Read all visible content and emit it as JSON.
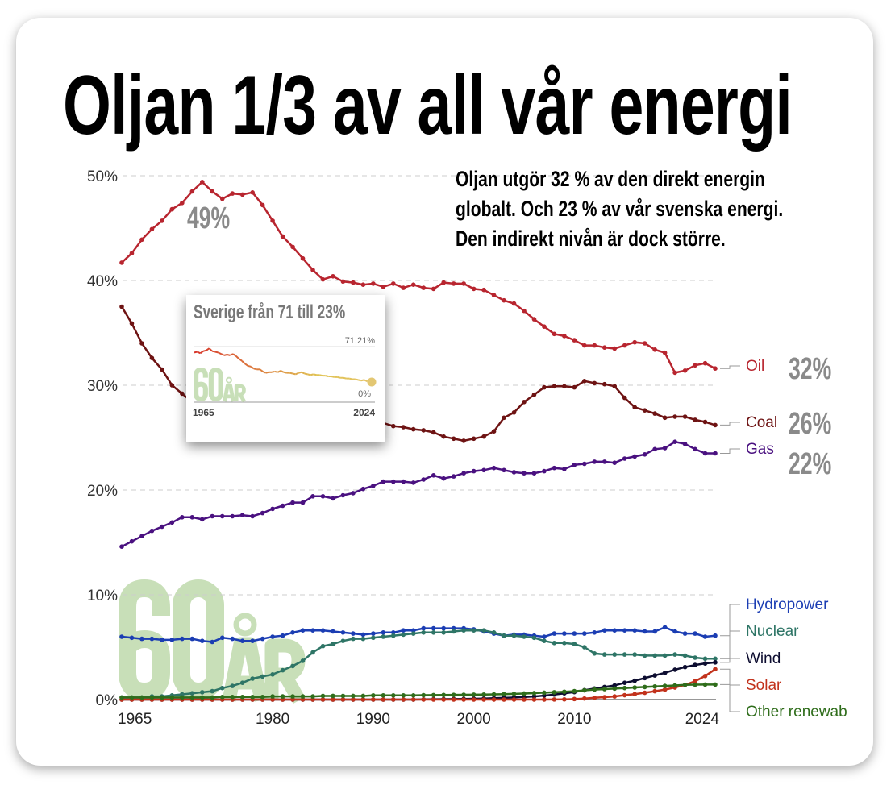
{
  "title": "Oljan 1/3 av all vår energi",
  "subtitle_lines": [
    "Oljan utgör 32 % av den direkt energin",
    "globalt. Och 23 % av vår svenska energi.",
    "Den indirekt nivån är dock större."
  ],
  "watermark": {
    "number": "60",
    "unit": "ÅR",
    "color": "#c8dfb8"
  },
  "callouts": {
    "peak": "49%",
    "oil": "32%",
    "coal": "26%",
    "gas": "22%"
  },
  "inset": {
    "title": "Sverige från 71 till 23%",
    "ymax_label": "71.21%",
    "ymin_label": "0%",
    "x_start": "1965",
    "x_end": "2024",
    "watermark_number": "60",
    "watermark_unit": "ÅR",
    "values": [
      65,
      66,
      64,
      67,
      68,
      71,
      67,
      66,
      65,
      63,
      61,
      62,
      61,
      63,
      60,
      56,
      53,
      49,
      46,
      45,
      42,
      41,
      41,
      38,
      36,
      37,
      37,
      38,
      37,
      39,
      37,
      36,
      36,
      35,
      34,
      36,
      37,
      35,
      34,
      33,
      34,
      33,
      33,
      32,
      32,
      31,
      31,
      30,
      30,
      29,
      29,
      28,
      28,
      27,
      27,
      26,
      25,
      26,
      24,
      23
    ]
  },
  "chart_data": {
    "type": "line",
    "x_start": 1965,
    "x_end": 2024,
    "xlim": [
      1965,
      2024
    ],
    "ylim": [
      0,
      50
    ],
    "x_ticks": [
      "1965",
      "1980",
      "1990",
      "2000",
      "2010",
      "2024"
    ],
    "y_ticks": [
      "0%",
      "10%",
      "20%",
      "30%",
      "40%",
      "50%"
    ],
    "grid": true,
    "series": [
      {
        "name": "Oil",
        "color": "#b8252f",
        "values": [
          41.7,
          42.6,
          43.9,
          44.9,
          45.7,
          46.8,
          47.4,
          48.5,
          49.4,
          48.5,
          47.8,
          48.3,
          48.2,
          48.4,
          47.2,
          45.7,
          44.2,
          43.2,
          42.1,
          41.0,
          40.1,
          40.4,
          39.9,
          39.8,
          39.6,
          39.7,
          39.4,
          39.7,
          39.3,
          39.6,
          39.3,
          39.2,
          39.8,
          39.7,
          39.7,
          39.2,
          39.1,
          38.6,
          38.1,
          37.8,
          37.1,
          36.3,
          35.6,
          34.9,
          34.7,
          34.3,
          33.8,
          33.8,
          33.6,
          33.5,
          33.8,
          34.1,
          34.0,
          33.4,
          33.1,
          31.2,
          31.4,
          31.9,
          32.1,
          31.6
        ]
      },
      {
        "name": "Coal",
        "color": "#6e1313",
        "values": [
          37.5,
          35.9,
          34.0,
          32.6,
          31.5,
          30.0,
          29.2,
          28.4,
          27.7,
          28.0,
          28.2,
          28.0,
          27.8,
          27.5,
          27.6,
          27.8,
          27.6,
          27.5,
          27.2,
          27.0,
          27.1,
          26.9,
          26.8,
          26.6,
          26.5,
          26.5,
          26.4,
          26.1,
          26.0,
          25.8,
          25.7,
          25.5,
          25.1,
          24.9,
          24.7,
          24.9,
          25.1,
          25.6,
          26.9,
          27.4,
          28.4,
          29.1,
          29.8,
          29.9,
          29.9,
          29.8,
          30.4,
          30.2,
          30.1,
          29.9,
          28.8,
          27.9,
          27.6,
          27.3,
          26.9,
          27.0,
          27.0,
          26.7,
          26.5,
          26.2
        ]
      },
      {
        "name": "Gas",
        "color": "#4a1180",
        "values": [
          14.6,
          15.1,
          15.6,
          16.1,
          16.5,
          16.9,
          17.4,
          17.4,
          17.2,
          17.5,
          17.5,
          17.5,
          17.6,
          17.5,
          17.8,
          18.2,
          18.5,
          18.8,
          18.8,
          19.4,
          19.4,
          19.2,
          19.5,
          19.7,
          20.1,
          20.4,
          20.8,
          20.8,
          20.8,
          20.7,
          21.0,
          21.4,
          21.1,
          21.3,
          21.6,
          21.8,
          21.9,
          22.1,
          21.9,
          21.7,
          21.6,
          21.6,
          21.8,
          22.1,
          22.0,
          22.4,
          22.5,
          22.7,
          22.7,
          22.6,
          23.0,
          23.2,
          23.4,
          23.9,
          24.0,
          24.6,
          24.4,
          23.9,
          23.5,
          23.5
        ]
      },
      {
        "name": "Hydropower",
        "color": "#1b3db3",
        "values": [
          6.0,
          5.9,
          5.8,
          5.8,
          5.7,
          5.7,
          5.8,
          5.8,
          5.6,
          5.5,
          5.9,
          5.8,
          5.6,
          5.6,
          5.8,
          6.0,
          6.1,
          6.4,
          6.6,
          6.6,
          6.6,
          6.5,
          6.4,
          6.3,
          6.2,
          6.3,
          6.4,
          6.4,
          6.6,
          6.6,
          6.8,
          6.8,
          6.8,
          6.8,
          6.8,
          6.7,
          6.5,
          6.3,
          6.1,
          6.2,
          6.2,
          6.1,
          6.0,
          6.3,
          6.3,
          6.3,
          6.3,
          6.4,
          6.6,
          6.6,
          6.6,
          6.6,
          6.5,
          6.5,
          6.9,
          6.5,
          6.3,
          6.3,
          6.0,
          6.1
        ]
      },
      {
        "name": "Nuclear",
        "color": "#2e7566",
        "values": [
          0.2,
          0.2,
          0.2,
          0.3,
          0.3,
          0.4,
          0.5,
          0.6,
          0.7,
          0.8,
          1.1,
          1.3,
          1.6,
          2.0,
          2.2,
          2.4,
          2.8,
          3.2,
          3.7,
          4.5,
          5.1,
          5.3,
          5.6,
          5.8,
          5.8,
          5.9,
          6.0,
          6.1,
          6.2,
          6.3,
          6.4,
          6.4,
          6.4,
          6.5,
          6.6,
          6.6,
          6.6,
          6.4,
          6.1,
          6.1,
          6.0,
          5.9,
          5.6,
          5.4,
          5.4,
          5.3,
          5.0,
          4.4,
          4.3,
          4.3,
          4.3,
          4.3,
          4.2,
          4.2,
          4.2,
          4.3,
          4.2,
          4.0,
          3.9,
          3.9
        ]
      },
      {
        "name": "Wind",
        "color": "#0d0d30",
        "values": [
          0,
          0,
          0,
          0,
          0,
          0,
          0,
          0,
          0,
          0,
          0,
          0,
          0,
          0,
          0,
          0,
          0,
          0,
          0,
          0,
          0,
          0,
          0,
          0,
          0,
          0,
          0,
          0,
          0,
          0,
          0.02,
          0.03,
          0.04,
          0.05,
          0.06,
          0.08,
          0.1,
          0.13,
          0.16,
          0.2,
          0.25,
          0.3,
          0.38,
          0.48,
          0.6,
          0.72,
          0.9,
          1.05,
          1.2,
          1.35,
          1.6,
          1.8,
          2.05,
          2.3,
          2.55,
          2.85,
          3.1,
          3.3,
          3.45,
          3.55
        ]
      },
      {
        "name": "Solar",
        "color": "#c2321c",
        "values": [
          0,
          0,
          0,
          0,
          0,
          0,
          0,
          0,
          0,
          0,
          0,
          0,
          0,
          0,
          0,
          0,
          0,
          0,
          0,
          0,
          0,
          0,
          0,
          0,
          0,
          0,
          0,
          0,
          0,
          0,
          0,
          0,
          0,
          0,
          0,
          0,
          0,
          0,
          0,
          0,
          0,
          0,
          0,
          0.01,
          0.02,
          0.05,
          0.1,
          0.17,
          0.23,
          0.3,
          0.42,
          0.52,
          0.65,
          0.8,
          0.95,
          1.15,
          1.4,
          1.75,
          2.25,
          2.9
        ]
      },
      {
        "name": "Other renewables",
        "label": "Other renewab",
        "color": "#2f6d1b",
        "values": [
          0.2,
          0.2,
          0.2,
          0.2,
          0.2,
          0.2,
          0.2,
          0.2,
          0.2,
          0.2,
          0.25,
          0.25,
          0.25,
          0.25,
          0.25,
          0.3,
          0.3,
          0.3,
          0.3,
          0.3,
          0.35,
          0.35,
          0.35,
          0.35,
          0.35,
          0.4,
          0.4,
          0.4,
          0.4,
          0.4,
          0.42,
          0.43,
          0.44,
          0.45,
          0.46,
          0.47,
          0.48,
          0.5,
          0.52,
          0.55,
          0.58,
          0.62,
          0.66,
          0.7,
          0.75,
          0.8,
          0.88,
          0.95,
          1.0,
          1.05,
          1.1,
          1.15,
          1.2,
          1.25,
          1.3,
          1.35,
          1.4,
          1.42,
          1.43,
          1.43
        ]
      }
    ]
  }
}
